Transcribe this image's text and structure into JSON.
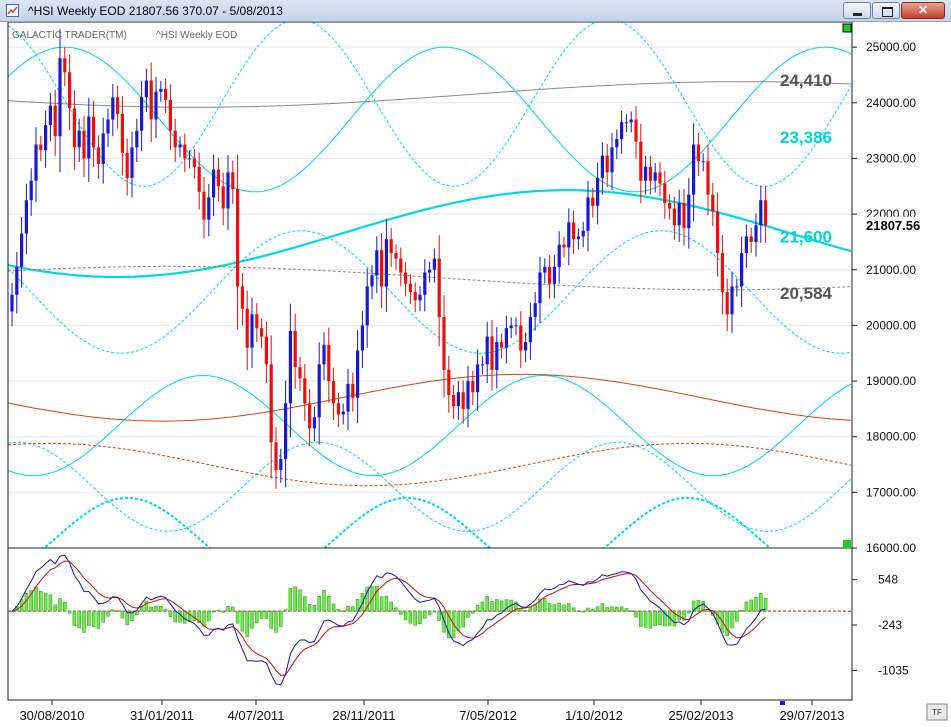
{
  "window": {
    "title": "^HSI Weekly EOD  21807.56    370.07 - 5/08/2013",
    "close_glyph": "✕"
  },
  "chart_header": {
    "brand": "GALACTIC TRADER(TM)",
    "instrument": "^HSI Weekly EOD",
    "corner_tag": "TF"
  },
  "chart_data": {
    "type": "candlestick",
    "title": "",
    "x_tick_labels": [
      "30/08/2010",
      "31/01/2011",
      "4/07/2011",
      "28/11/2011",
      "7/05/2012",
      "1/10/2012",
      "25/02/2013",
      "29/07/2013"
    ],
    "y_ticks": [
      16000,
      17000,
      18000,
      19000,
      20000,
      21000,
      22000,
      23000,
      24000,
      25000
    ],
    "y_tick_labels": [
      "16000.00",
      "17000.00",
      "18000.00",
      "19000.00",
      "20000.00",
      "21000.00",
      "22000.00",
      "23000.00",
      "24000.00",
      "25000.00"
    ],
    "ylim": [
      16000,
      25500
    ],
    "last_price": "21807.56",
    "levels": [
      {
        "label": "24,410",
        "value": 24410,
        "color": "#555555"
      },
      {
        "label": "23,386",
        "value": 23386,
        "color": "#00d4d4"
      },
      {
        "label": "21,600",
        "value": 21600,
        "color": "#00d4d4"
      },
      {
        "label": "20,584",
        "value": 20584,
        "color": "#555555"
      }
    ],
    "closes": [
      20550,
      21050,
      21650,
      22250,
      22600,
      23250,
      23150,
      23600,
      23950,
      23400,
      24800,
      24550,
      23900,
      23200,
      23500,
      23000,
      23750,
      23200,
      22900,
      23450,
      23700,
      24100,
      23800,
      23100,
      22650,
      23200,
      23500,
      24100,
      24400,
      23700,
      24200,
      24250,
      24050,
      23500,
      23200,
      23250,
      23000,
      23000,
      22850,
      22400,
      21900,
      22300,
      22800,
      22500,
      22100,
      22750,
      22450,
      20700,
      20300,
      19600,
      20200,
      19950,
      19800,
      19300,
      17900,
      17400,
      17600,
      18600,
      19900,
      19250,
      19050,
      18600,
      18150,
      18350,
      19300,
      19650,
      19000,
      18600,
      18400,
      18450,
      18950,
      18700,
      19550,
      20000,
      20700,
      20900,
      21350,
      20700,
      21550,
      21300,
      21200,
      20950,
      20750,
      20600,
      20450,
      20550,
      20950,
      21000,
      21200,
      20150,
      19200,
      18750,
      18550,
      18800,
      18500,
      19000,
      18800,
      19300,
      19300,
      19800,
      19200,
      19700,
      19600,
      19950,
      20000,
      20000,
      19550,
      19700,
      20150,
      20400,
      20950,
      21050,
      20750,
      21050,
      21450,
      21400,
      21850,
      21550,
      21600,
      21700,
      22300,
      22150,
      22650,
      23050,
      22750,
      23200,
      23350,
      23650,
      23650,
      23700,
      23300,
      22600,
      22850,
      22600,
      22750,
      22550,
      22200,
      22100,
      21800,
      22200,
      21750,
      22350,
      23250,
      22950,
      22950,
      22350,
      22050,
      21300,
      20600,
      20200,
      20700,
      20700,
      21300,
      21600,
      21500,
      21800,
      22250,
      21800
    ],
    "oscillator": {
      "zero_line": 0,
      "y_ticks": [
        548,
        -243,
        -1035
      ],
      "y_tick_labels": [
        "548",
        "-243",
        "-1035"
      ],
      "ylim": [
        -1550,
        1100
      ],
      "histogram_color": "#66ee44",
      "macd_color": "#1a1aaa",
      "signal_color": "#cc1111"
    },
    "colors": {
      "up_candle": "#1a1acc",
      "down_candle": "#e81010",
      "cycle_cyan": "#00d8e8",
      "cycle_gray": "#8a8a8a",
      "cycle_orange": "#d04818",
      "grid": "#e8e8e8"
    }
  }
}
